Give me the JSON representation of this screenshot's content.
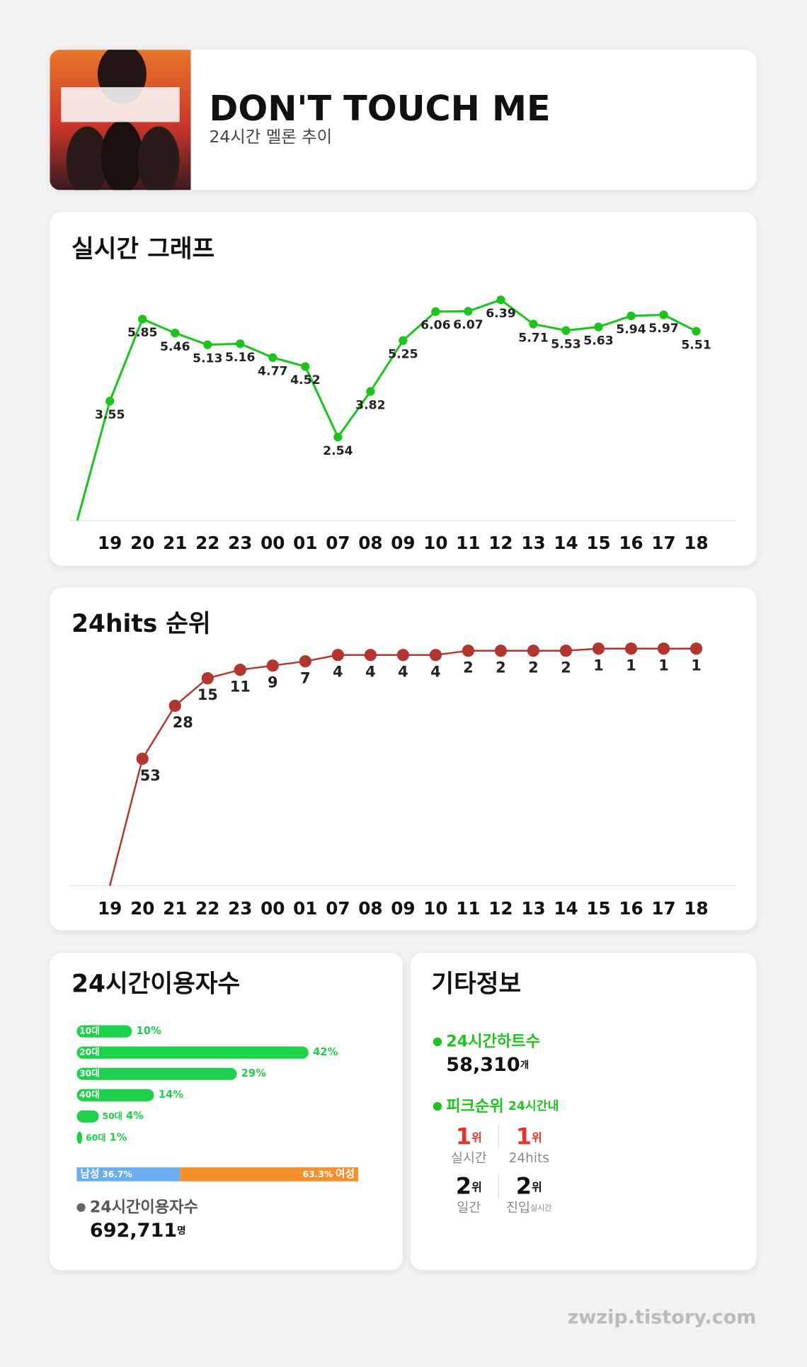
{
  "header": {
    "title": "DON'T TOUCH ME",
    "subtitle": "24시간 멜론 추이"
  },
  "chart_data": [
    {
      "type": "line",
      "title": "실시간 그래프",
      "categories": [
        null,
        "19",
        "20",
        "21",
        "22",
        "23",
        "00",
        "01",
        "07",
        "08",
        "09",
        "10",
        "11",
        "12",
        "13",
        "14",
        "15",
        "16",
        "17",
        "18"
      ],
      "values": [
        0.2,
        3.55,
        5.85,
        5.46,
        5.13,
        5.16,
        4.77,
        4.52,
        2.54,
        3.82,
        5.25,
        6.06,
        6.07,
        6.39,
        5.71,
        5.53,
        5.63,
        5.94,
        5.97,
        5.51
      ],
      "color": "#1ec41e",
      "ylim": [
        0.2,
        7
      ]
    },
    {
      "type": "line",
      "title": "24hits 순위",
      "categories": [
        "19",
        "20",
        "21",
        "22",
        "23",
        "00",
        "01",
        "07",
        "08",
        "09",
        "10",
        "11",
        "12",
        "13",
        "14",
        "15",
        "16",
        "17",
        "18"
      ],
      "values": [
        113,
        53,
        28,
        15,
        11,
        9,
        7,
        4,
        4,
        4,
        4,
        2,
        2,
        2,
        2,
        1,
        1,
        1,
        1
      ],
      "color": "#b3352e",
      "ylim": [
        113,
        1
      ]
    },
    {
      "type": "hbar",
      "title": "24시간이용자수",
      "categories": [
        "10대",
        "20대",
        "30대",
        "40대",
        "50대",
        "60대"
      ],
      "values": [
        10,
        42,
        29,
        14,
        4,
        1
      ],
      "value_labels": [
        "10%",
        "42%",
        "29%",
        "14%",
        "4%",
        "1%"
      ],
      "color": "#1ed14a",
      "xlim": [
        0,
        51
      ]
    },
    {
      "type": "stacked",
      "series": [
        {
          "name": "남성",
          "color": "#6aaef0",
          "values": [
            36.7
          ],
          "value_labels": [
            "36.7%"
          ]
        },
        {
          "name": "여성",
          "color": "#f58f2c",
          "values": [
            63.3
          ],
          "value_labels": [
            "63.3%"
          ]
        }
      ],
      "xlim": [
        0,
        100
      ]
    }
  ],
  "users": {
    "label": "24시간이용자수",
    "value": "692,711",
    "unit": "명"
  },
  "info": {
    "title": "기타정보",
    "hearts": {
      "label": "24시간하트수",
      "value": "58,310",
      "unit": "개"
    },
    "peak": {
      "label": "피크순위",
      "note": "24시간내",
      "ranks": [
        {
          "rank": "1",
          "unit": "위",
          "label": "실시간"
        },
        {
          "rank": "1",
          "unit": "위",
          "label": "24hits"
        },
        {
          "rank": "2",
          "unit": "위",
          "label": "일간"
        },
        {
          "rank": "2",
          "unit": "위",
          "label": "진입",
          "note": "실시간"
        }
      ]
    }
  },
  "footer": "zwzip.tistory.com"
}
